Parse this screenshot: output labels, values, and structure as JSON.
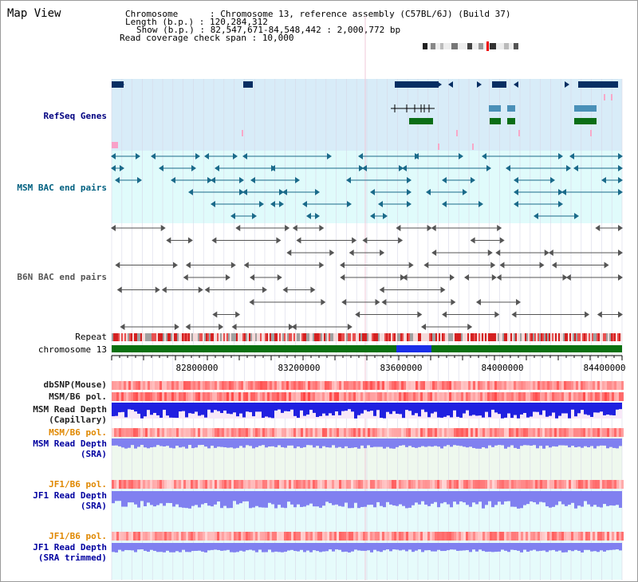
{
  "title": "Map View",
  "header": {
    "chromosome_label": "Chromosome      : ",
    "chromosome_value": "Chromosome 13, reference assembly (C57BL/6J) (Build 37)",
    "length_label": "Length (b.p.) : ",
    "length_value": "120,284,312",
    "show_label": "Show (b.p.) : ",
    "show_value": "82,547,671-84,548,442 : 2,000,772 bp",
    "span_label": "Read coverage check span : ",
    "span_value": "10,000"
  },
  "tracks": {
    "refseq": "RefSeq Genes",
    "msm_bac": "MSM BAC end pairs",
    "b6n_bac": "B6N BAC end pairs",
    "repeat": "Repeat",
    "chromosome": "chromosome 13",
    "dbsnp": "dbSNP(Mouse)",
    "msm_b6_pol_1": "MSM/B6 pol.",
    "msm_rd_cap_1": "MSM Read Depth",
    "msm_rd_cap_2": "(Capillary)",
    "msm_b6_pol_2": "MSM/B6 pol.",
    "msm_rd_sra_1": "MSM Read Depth",
    "msm_rd_sra_2": "(SRA)",
    "jf1_b6_pol_1": "JF1/B6 pol.",
    "jf1_rd_sra_1": "JF1 Read Depth",
    "jf1_rd_sra_2": "(SRA)",
    "jf1_b6_pol_2": "JF1/B6 pol.",
    "jf1_rd_trim_1": "JF1 Read Depth",
    "jf1_rd_trim_2": "(SRA trimmed)"
  },
  "axis_ticks": [
    "82800000",
    "83200000",
    "83600000",
    "84000000",
    "84400000"
  ],
  "colors": {
    "refseq_bg": "#d8ecf8",
    "bac_bg": "#e0fbfb",
    "gene_dark": "#062e62",
    "gene_green": "#0b6e16",
    "gene_steel": "#4a90b8",
    "msm_bac": "#1a6a8a",
    "b6n_bac": "#555555",
    "repeat_red": "#d42020",
    "chrom_green": "#0a7010",
    "chrom_blue": "#1a2ee8",
    "depth_blue": "#2020e0",
    "depth_light": "#8080f0"
  }
}
